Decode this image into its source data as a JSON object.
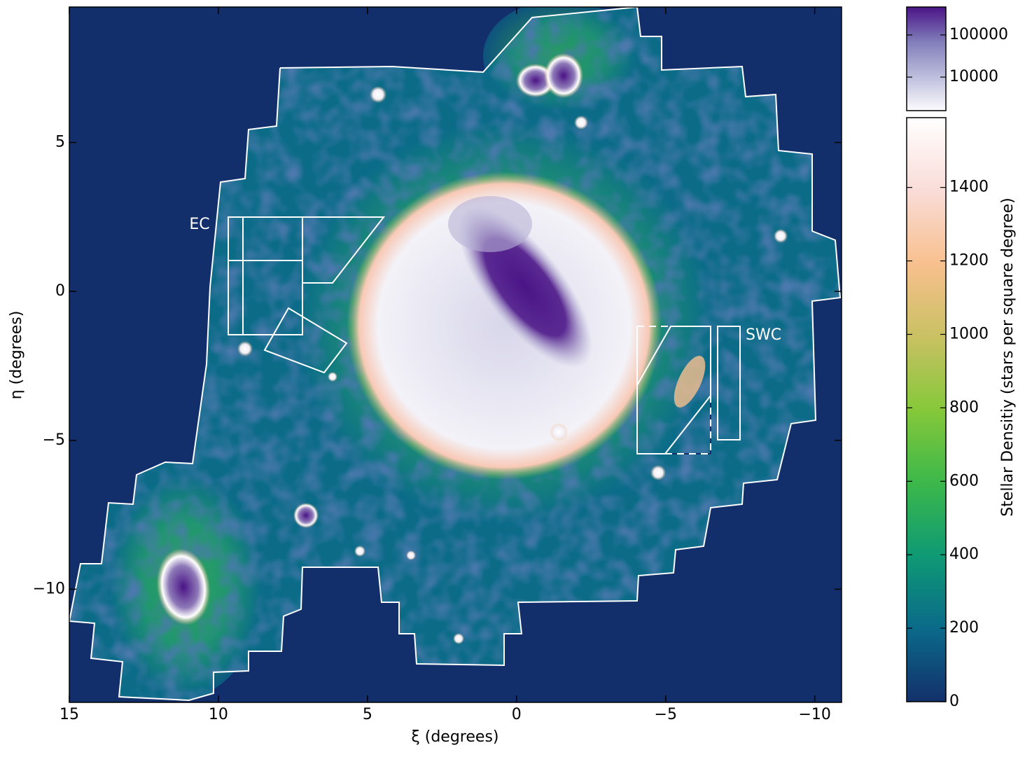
{
  "chart_data": {
    "type": "image",
    "xlabel": "ξ (degrees)",
    "ylabel": "η (degrees)",
    "xlim": [
      15,
      -10.9
    ],
    "ylim": [
      -13.8,
      9.55
    ],
    "xticks": [
      15,
      10,
      5,
      0,
      {
        "value": -5,
        "label": "−5"
      },
      {
        "value": -10,
        "label": "−10"
      }
    ],
    "yticks": [
      5,
      0,
      {
        "value": -5,
        "label": "−5"
      },
      {
        "value": -10,
        "label": "−10"
      }
    ],
    "annotations": [
      "EC",
      "SWC"
    ],
    "colorbar": {
      "label": "Stellar Densitiy (stars per square degree)",
      "log_part": {
        "log": true,
        "lim": [
          1600,
          460000
        ],
        "ticks": [
          100000,
          10000
        ],
        "colors": [
          "#fcfbfd",
          "#bcbddc",
          "#807dba",
          "#4a1486"
        ]
      },
      "linear_part": {
        "lim": [
          0,
          1590
        ],
        "ticks": [
          0,
          200,
          400,
          600,
          800,
          1000,
          1200,
          1400
        ],
        "colors": [
          "#13306b",
          "#0a6a8a",
          "#0e9a74",
          "#3cb84a",
          "#86c83a",
          "#c9c163",
          "#f8c08e",
          "#f9dcd8",
          "#ffffff"
        ]
      }
    }
  }
}
